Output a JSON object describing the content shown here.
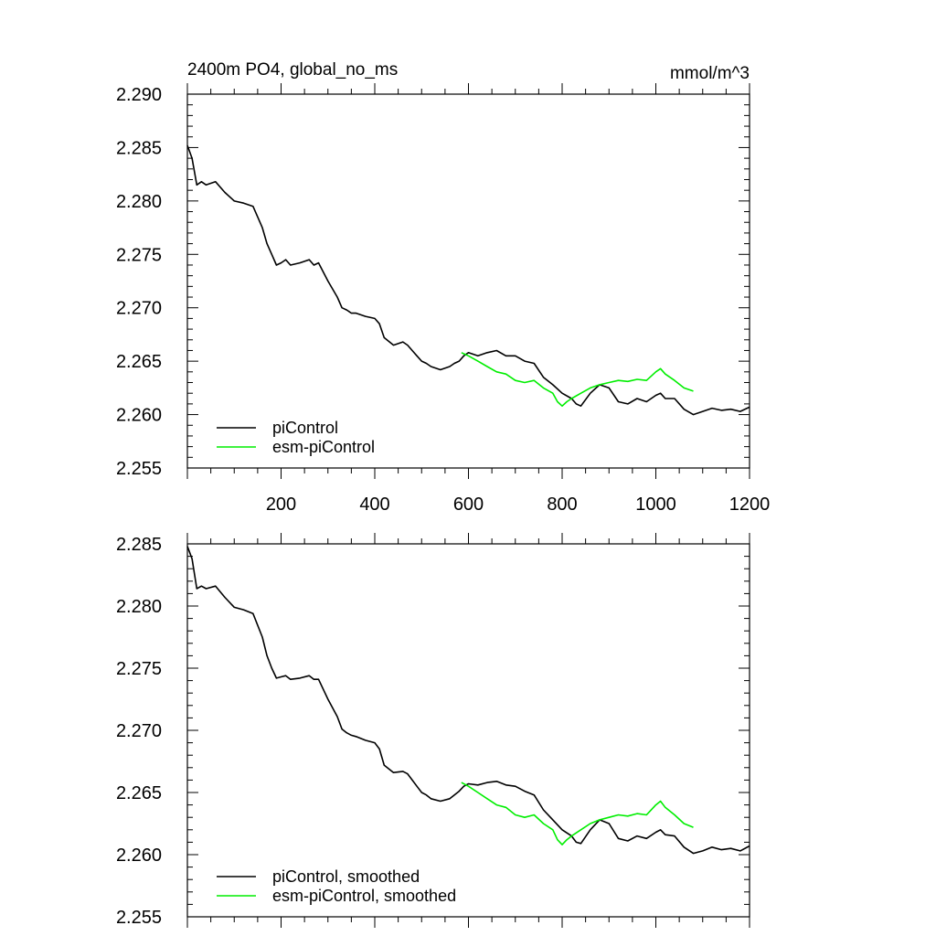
{
  "chart_data": [
    {
      "type": "line",
      "title": "2400m PO4, global_no_ms",
      "units": "mmol/m^3",
      "xlim": [
        0,
        1200
      ],
      "ylim": [
        2.255,
        2.29
      ],
      "xticks": [
        200,
        400,
        600,
        800,
        1000,
        1200
      ],
      "yticks": [
        "2.290",
        "2.285",
        "2.280",
        "2.275",
        "2.270",
        "2.265",
        "2.260",
        "2.255"
      ],
      "legend_position": "bottom-left",
      "series": [
        {
          "name": "piControl",
          "color": "#000000",
          "x": [
            0,
            10,
            20,
            30,
            40,
            60,
            80,
            100,
            120,
            140,
            160,
            170,
            180,
            190,
            200,
            210,
            220,
            240,
            260,
            270,
            280,
            300,
            320,
            330,
            340,
            350,
            360,
            380,
            400,
            410,
            420,
            440,
            460,
            470,
            480,
            490,
            500,
            510,
            520,
            540,
            560,
            570,
            580,
            590,
            600,
            620,
            640,
            660,
            680,
            700,
            720,
            740,
            760,
            780,
            800,
            820,
            830,
            840,
            860,
            880,
            900,
            920,
            940,
            960,
            980,
            1000,
            1010,
            1020,
            1040,
            1060,
            1080,
            1100,
            1120,
            1140,
            1160,
            1180,
            1200
          ],
          "values": [
            2.2852,
            2.284,
            2.2815,
            2.2818,
            2.2815,
            2.2818,
            2.2808,
            2.28,
            2.2798,
            2.2795,
            2.2775,
            2.276,
            2.275,
            2.274,
            2.2742,
            2.2745,
            2.274,
            2.2742,
            2.2745,
            2.274,
            2.2742,
            2.2725,
            2.271,
            2.27,
            2.2698,
            2.2695,
            2.2695,
            2.2692,
            2.269,
            2.2685,
            2.2672,
            2.2665,
            2.2668,
            2.2665,
            2.266,
            2.2655,
            2.265,
            2.2648,
            2.2645,
            2.2642,
            2.2645,
            2.2648,
            2.265,
            2.2655,
            2.2658,
            2.2655,
            2.2658,
            2.266,
            2.2655,
            2.2655,
            2.265,
            2.2648,
            2.2635,
            2.2628,
            2.262,
            2.2615,
            2.261,
            2.2608,
            2.262,
            2.2628,
            2.2625,
            2.2612,
            2.261,
            2.2615,
            2.2612,
            2.2618,
            2.262,
            2.2615,
            2.2615,
            2.2605,
            2.26,
            2.2603,
            2.2606,
            2.2604,
            2.2605,
            2.2603,
            2.2607
          ]
        },
        {
          "name": "esm-piControl",
          "color": "#00ee00",
          "x": [
            585,
            600,
            620,
            640,
            660,
            680,
            700,
            720,
            740,
            760,
            780,
            790,
            800,
            810,
            820,
            840,
            860,
            880,
            900,
            920,
            940,
            960,
            980,
            1000,
            1010,
            1020,
            1040,
            1060,
            1080
          ],
          "values": [
            2.2658,
            2.2655,
            2.265,
            2.2645,
            2.264,
            2.2638,
            2.2632,
            2.263,
            2.2632,
            2.2625,
            2.262,
            2.2612,
            2.2608,
            2.2612,
            2.2615,
            2.262,
            2.2625,
            2.2628,
            2.263,
            2.2632,
            2.2631,
            2.2633,
            2.2632,
            2.264,
            2.2643,
            2.2638,
            2.2632,
            2.2625,
            2.2622
          ]
        }
      ]
    },
    {
      "type": "line",
      "title": "",
      "units": "",
      "xlim": [
        0,
        1200
      ],
      "ylim": [
        2.255,
        2.285
      ],
      "xticks": [],
      "yticks": [
        "2.285",
        "2.280",
        "2.275",
        "2.270",
        "2.265",
        "2.260",
        "2.255"
      ],
      "legend_position": "bottom-left",
      "series": [
        {
          "name": "piControl, smoothed",
          "color": "#000000",
          "x": [
            0,
            10,
            20,
            30,
            40,
            60,
            80,
            100,
            120,
            140,
            160,
            170,
            180,
            190,
            200,
            210,
            220,
            240,
            260,
            270,
            280,
            300,
            320,
            330,
            340,
            350,
            360,
            380,
            400,
            410,
            420,
            440,
            460,
            470,
            480,
            490,
            500,
            510,
            520,
            540,
            560,
            570,
            580,
            590,
            600,
            620,
            640,
            660,
            680,
            700,
            720,
            740,
            760,
            780,
            800,
            820,
            830,
            840,
            860,
            880,
            900,
            920,
            940,
            960,
            980,
            1000,
            1010,
            1020,
            1040,
            1060,
            1080,
            1100,
            1120,
            1140,
            1160,
            1180,
            1200
          ],
          "values": [
            2.2848,
            2.2838,
            2.2814,
            2.2816,
            2.2814,
            2.2816,
            2.2807,
            2.2799,
            2.2797,
            2.2794,
            2.2775,
            2.276,
            2.275,
            2.2742,
            2.2743,
            2.2744,
            2.2741,
            2.2742,
            2.2744,
            2.2741,
            2.2741,
            2.2725,
            2.2711,
            2.2701,
            2.2698,
            2.2696,
            2.2695,
            2.2692,
            2.269,
            2.2685,
            2.2672,
            2.2666,
            2.2667,
            2.2665,
            2.266,
            2.2655,
            2.265,
            2.2648,
            2.2645,
            2.2643,
            2.2645,
            2.2648,
            2.2651,
            2.2655,
            2.2657,
            2.2656,
            2.2658,
            2.2659,
            2.2656,
            2.2655,
            2.2651,
            2.2648,
            2.2636,
            2.2628,
            2.262,
            2.2615,
            2.261,
            2.2609,
            2.262,
            2.2628,
            2.2625,
            2.2613,
            2.2611,
            2.2615,
            2.2613,
            2.2618,
            2.262,
            2.2616,
            2.2615,
            2.2606,
            2.2601,
            2.2603,
            2.2606,
            2.2604,
            2.2605,
            2.2603,
            2.2607
          ]
        },
        {
          "name": "esm-piControl, smoothed",
          "color": "#00ee00",
          "x": [
            585,
            600,
            620,
            640,
            660,
            680,
            700,
            720,
            740,
            760,
            780,
            790,
            800,
            810,
            820,
            840,
            860,
            880,
            900,
            920,
            940,
            960,
            980,
            1000,
            1010,
            1020,
            1040,
            1060,
            1080
          ],
          "values": [
            2.2658,
            2.2655,
            2.265,
            2.2645,
            2.264,
            2.2638,
            2.2632,
            2.263,
            2.2632,
            2.2625,
            2.262,
            2.2612,
            2.2608,
            2.2612,
            2.2615,
            2.262,
            2.2625,
            2.2628,
            2.263,
            2.2632,
            2.2631,
            2.2633,
            2.2632,
            2.264,
            2.2643,
            2.2638,
            2.2632,
            2.2625,
            2.2622
          ]
        }
      ]
    }
  ]
}
